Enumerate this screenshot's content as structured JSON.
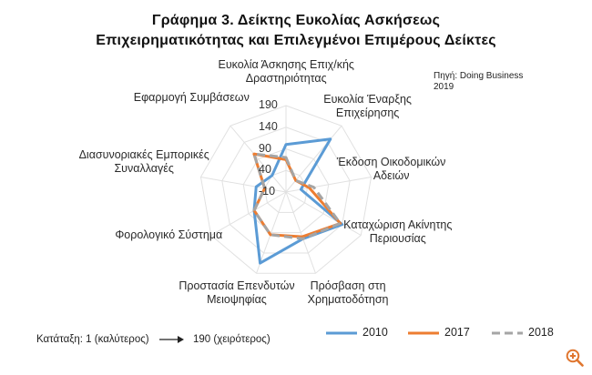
{
  "chart_data": {
    "type": "radar",
    "title_line1": "Γράφημα 3. Δείκτης Ευκολίας Ασκήσεως",
    "title_line2": "Επιχειρηματικότητας και Επιλεγμένοι Επιμέρους Δείκτες",
    "source_line1": "Πηγή: Doing Business",
    "source_line2": "2019",
    "axes": [
      {
        "line1": "Ευκολία Άσκησης Επιχ/κής",
        "line2": "Δραστηριότητας"
      },
      {
        "line1": "Ευκολία Έναρξης",
        "line2": "Επιχείρησης"
      },
      {
        "line1": "Έκδοση Οικοδομικών",
        "line2": "Αδειών"
      },
      {
        "line1": "Καταχώριση Ακίνητης",
        "line2": "Περιουσίας"
      },
      {
        "line1": "Πρόσβαση στη",
        "line2": "Χρηματοδότηση"
      },
      {
        "line1": "Προστασία Επενδυτών",
        "line2": "Μειοψηφίας"
      },
      {
        "line1": "Φορολογικό Σύστημα",
        "line2": ""
      },
      {
        "line1": "Διασυνοριακές Εμπορικές",
        "line2": "Συναλλαγές"
      },
      {
        "line1": "Εφαρμογή Συμβάσεων",
        "line2": ""
      }
    ],
    "r_ticks": [
      "190",
      "140",
      "90",
      "40",
      "-10"
    ],
    "r_range": [
      -10,
      190
    ],
    "series": [
      {
        "name": "2010",
        "color": "#5b9bd5",
        "dash": "solid",
        "values": [
          100,
          150,
          25,
          140,
          105,
          165,
          75,
          60,
          40
        ]
      },
      {
        "name": "2017",
        "color": "#ed7d31",
        "dash": "solid",
        "values": [
          65,
          25,
          45,
          135,
          100,
          95,
          75,
          40,
          105
        ]
      },
      {
        "name": "2018",
        "color": "#a5a5a5",
        "dash": "dashed",
        "values": [
          70,
          25,
          55,
          135,
          105,
          95,
          75,
          40,
          105
        ]
      }
    ],
    "grid": true,
    "legend_position": "bottom-right",
    "ranking_note_left": "Κατάταξη: 1 (καλύτερος)",
    "ranking_note_right": "190 (χειρότερος)"
  },
  "ui": {
    "zoom_icon": "zoom-in-icon"
  }
}
